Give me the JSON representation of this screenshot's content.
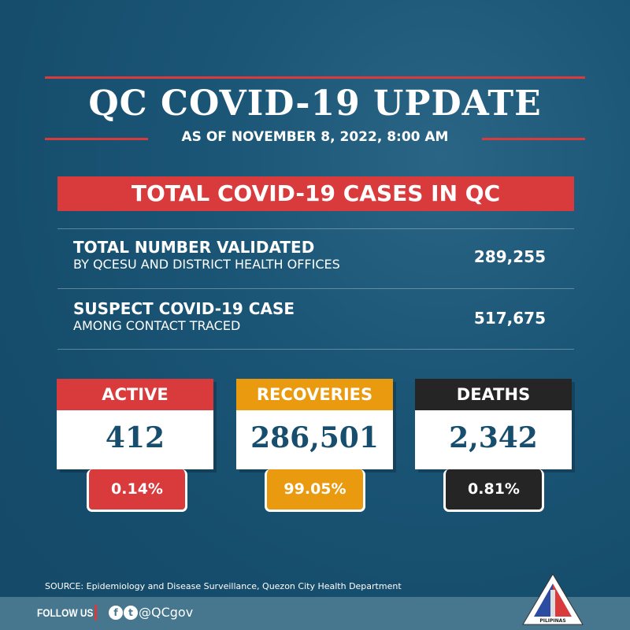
{
  "header": {
    "title": "QC COVID-19 UPDATE",
    "subtitle": "AS OF NOVEMBER 8, 2022, 8:00 AM"
  },
  "banner": "TOTAL COVID-19 CASES IN QC",
  "rows": [
    {
      "label": "TOTAL NUMBER VALIDATED",
      "sublabel": "BY QCESU AND DISTRICT HEALTH OFFICES",
      "value": "289,255"
    },
    {
      "label": "SUSPECT COVID-19 CASE",
      "sublabel": "AMONG CONTACT TRACED",
      "value": "517,675"
    }
  ],
  "cards": [
    {
      "label": "ACTIVE",
      "value": "412",
      "percent": "0.14%",
      "color": "#d93a3c"
    },
    {
      "label": "RECOVERIES",
      "value": "286,501",
      "percent": "99.05%",
      "color": "#e99a0e"
    },
    {
      "label": "DEATHS",
      "value": "2,342",
      "percent": "0.81%",
      "color": "#252525"
    }
  ],
  "source": "SOURCE: Epidemiology and Disease Surveillance, Quezon City Health Department",
  "footer": {
    "follow": "FOLLOW US",
    "handle": "@QCgov",
    "icons": [
      "facebook-icon",
      "twitter-icon"
    ]
  },
  "seal": {
    "text": "LUNGSOD QUEZON PILIPINAS"
  }
}
